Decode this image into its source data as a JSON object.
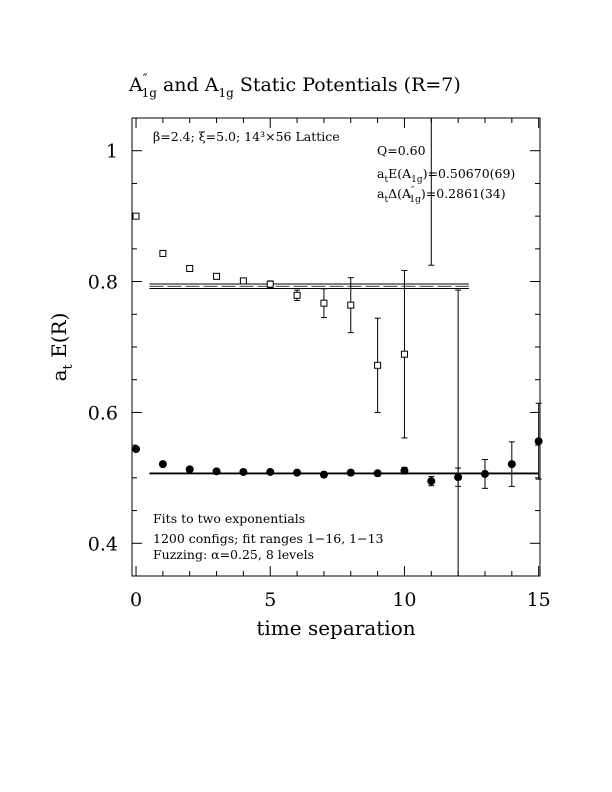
{
  "chart_data": {
    "type": "scatter",
    "title_parts": [
      "A",
      "″",
      "1g",
      " and A",
      "1g",
      " Static Potentials (R=7)"
    ],
    "xlabel": "time separation",
    "ylabel_main": "a",
    "ylabel_sub": "t",
    "ylabel_rest": " E(R)",
    "xlim": [
      -0.15,
      15.05
    ],
    "ylim": [
      0.35,
      1.05
    ],
    "x_ticks": [
      0,
      5,
      10,
      15
    ],
    "x_tick_labels": [
      "0",
      "5",
      "10",
      "15"
    ],
    "y_ticks": [
      0.4,
      0.6,
      0.8,
      1.0
    ],
    "y_tick_labels": [
      "0.4",
      "0.6",
      "0.8",
      "1"
    ],
    "info_top": "β=2.4; ξ=5.0; 14³×56 Lattice",
    "fit_info": {
      "q": "Q=0.60",
      "e_a1g_parts": [
        "a",
        "t",
        "E(A",
        "1g",
        ")=0.50670(69)"
      ],
      "delta_parts": [
        "a",
        "t",
        "Δ(A",
        "″",
        "1g",
        ")=0.2861(34)"
      ]
    },
    "notes": [
      "Fits to two exponentials",
      "1200 configs; fit ranges 1−16, 1−13",
      "Fuzzing: α=0.25, 8 levels"
    ],
    "series": [
      {
        "marker": "open-square",
        "points": [
          {
            "x": 0,
            "y": 0.9,
            "err": 0.003
          },
          {
            "x": 1,
            "y": 0.843,
            "err": 0.003
          },
          {
            "x": 2,
            "y": 0.82,
            "err": 0.003
          },
          {
            "x": 3,
            "y": 0.808,
            "err": 0.004
          },
          {
            "x": 4,
            "y": 0.801,
            "err": 0.004
          },
          {
            "x": 5,
            "y": 0.796,
            "err": 0.005
          },
          {
            "x": 6,
            "y": 0.779,
            "err": 0.008
          },
          {
            "x": 7,
            "y": 0.767,
            "err": 0.022
          },
          {
            "x": 8,
            "y": 0.764,
            "err": 0.042
          },
          {
            "x": 9,
            "y": 0.672,
            "err": 0.072
          },
          {
            "x": 10,
            "y": 0.689,
            "err": 0.128
          }
        ]
      },
      {
        "marker": "filled-circle",
        "points": [
          {
            "x": 0,
            "y": 0.544,
            "err": 0.003
          },
          {
            "x": 1,
            "y": 0.521,
            "err": 0.002
          },
          {
            "x": 2,
            "y": 0.513,
            "err": 0.002
          },
          {
            "x": 3,
            "y": 0.51,
            "err": 0.002
          },
          {
            "x": 4,
            "y": 0.509,
            "err": 0.002
          },
          {
            "x": 5,
            "y": 0.509,
            "err": 0.003
          },
          {
            "x": 6,
            "y": 0.508,
            "err": 0.003
          },
          {
            "x": 7,
            "y": 0.505,
            "err": 0.004
          },
          {
            "x": 8,
            "y": 0.508,
            "err": 0.004
          },
          {
            "x": 9,
            "y": 0.507,
            "err": 0.004
          },
          {
            "x": 10,
            "y": 0.511,
            "err": 0.005
          },
          {
            "x": 11,
            "y": 0.495,
            "err": 0.007
          },
          {
            "x": 12,
            "y": 0.501,
            "err": 0.014
          },
          {
            "x": 13,
            "y": 0.506,
            "err": 0.022
          },
          {
            "x": 14,
            "y": 0.521,
            "err": 0.034
          },
          {
            "x": 15,
            "y": 0.556,
            "err": 0.058
          }
        ]
      }
    ],
    "excited_fit": {
      "y": 0.7928,
      "err": 0.0034,
      "x_start": 0.5,
      "x_end": 12.4
    },
    "ground_fit": {
      "y": 0.5067,
      "err": 0.0007,
      "x_start": 0.5,
      "x_end": 15.0
    },
    "long_error_bars": [
      {
        "x": 11,
        "y_low": 0.825,
        "y_high": 1.05
      },
      {
        "x": 12,
        "y_low": 0.35,
        "y_high": 0.787
      }
    ]
  }
}
